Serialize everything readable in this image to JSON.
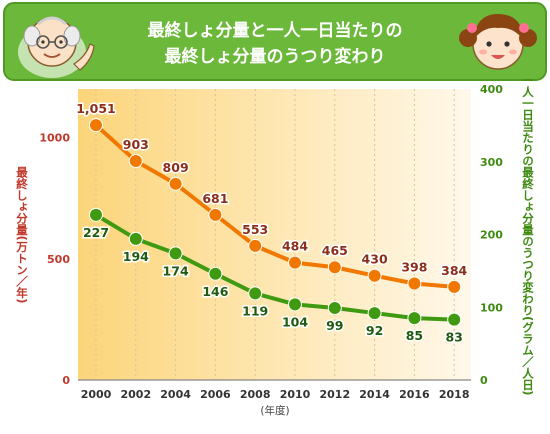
{
  "header": {
    "title_lines": [
      "最終しょ分量と一人一日当たりの",
      "最終しょ分量のうつり変わり"
    ]
  },
  "colors": {
    "banner_green": "#6cb83b",
    "banner_border": "#4e9a25",
    "disposal_line": "#f07800",
    "per_person_line": "#3f9a12",
    "left_axis_text": "#c0392b",
    "right_axis_text": "#3f8a12",
    "label_total": "#8b2e1a",
    "label_per_person": "#1f5a10",
    "plot_bg_left": "#fcd57a",
    "plot_bg_right": "#fff8ea"
  },
  "chart_data": {
    "type": "line",
    "categories": [
      "2000",
      "2002",
      "2004",
      "2006",
      "2008",
      "2010",
      "2012",
      "2014",
      "2016",
      "2018"
    ],
    "x_unit_label": "(年度)",
    "series": [
      {
        "name": "最終しょ分量",
        "axis": "left",
        "values": [
          1051,
          903,
          809,
          681,
          553,
          484,
          465,
          430,
          398,
          384
        ],
        "labels": [
          "1,051",
          "903",
          "809",
          "681",
          "553",
          "484",
          "465",
          "430",
          "398",
          "384"
        ]
      },
      {
        "name": "一人一日当たりの最終しょ分量",
        "axis": "right",
        "values": [
          227,
          194,
          174,
          146,
          119,
          104,
          99,
          92,
          85,
          83
        ],
        "labels": [
          "227",
          "194",
          "174",
          "146",
          "119",
          "104",
          "99",
          "92",
          "85",
          "83"
        ]
      }
    ],
    "left_axis": {
      "label": "最終しょ分量(万トン／年)",
      "range": [
        0,
        1200
      ],
      "ticks": [
        0,
        500,
        1000
      ]
    },
    "right_axis": {
      "label": "一人一日当たりの最終しょ分量のうつり変わり(グラム／人日)",
      "range": [
        0,
        400
      ],
      "ticks": [
        0,
        100,
        200,
        300,
        400
      ]
    },
    "grid": "vertical-dashed"
  }
}
